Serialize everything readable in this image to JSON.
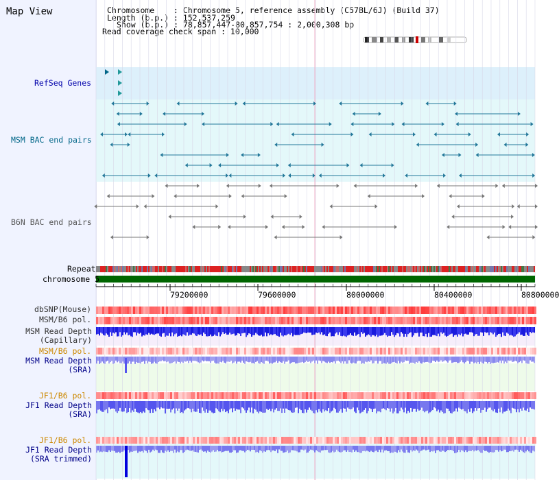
{
  "title": "Map View",
  "info": {
    "chromosome_label": "Chromosome    : Chromosome 5, reference assembly (C57BL/6J) (Build 37)",
    "length_label": "Length (b.p.) : 152,537,259",
    "show_label": "Show (b.p.) : 78,857,447-80,857,754 : 2,000,308 bp",
    "coverage_label": "Read coverage check span : 10,000"
  },
  "tracks": {
    "refseq": "RefSeq Genes",
    "msm_bac": "MSM BAC end pairs",
    "b6n_bac": "B6N BAC end pairs",
    "repeat": "Repeat",
    "chromosome": "chromosome 5",
    "dbsnp": "dbSNP(Mouse)",
    "msm_b6_pol_1": "MSM/B6 pol.",
    "msm_depth_cap": "MSM Read Depth\n(Capillary)",
    "msm_b6_pol_2": "MSM/B6 pol.",
    "msm_depth_sra": "MSM Read Depth\n(SRA)",
    "jf1_b6_pol_1": "JF1/B6 pol.",
    "jf1_depth_sra": "JF1 Read Depth\n(SRA)",
    "jf1_b6_pol_2": "JF1/B6 pol.",
    "jf1_depth_trim": "JF1 Read Depth\n(SRA trimmed)"
  },
  "ruler": {
    "ticks": [
      "79200000",
      "79600000",
      "80000000",
      "80400000",
      "80800000"
    ]
  },
  "colors": {
    "refseq_label": "#0000aa",
    "msm_bac_label": "#006688",
    "b6n_bac_label": "#555555",
    "pol_label": "#cc8800",
    "depth_label": "#000088",
    "chromosome_bar": "#006600",
    "depth_blue": "#2222dd",
    "depth_light": "#7777ee"
  }
}
